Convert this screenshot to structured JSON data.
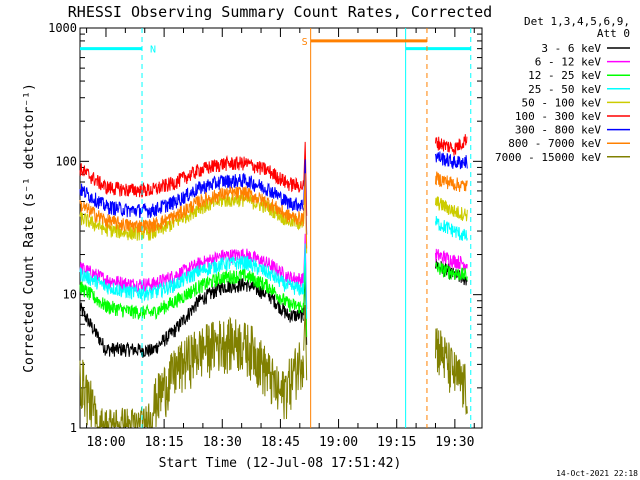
{
  "chart_data": {
    "type": "line",
    "title": "RHESSI Observing Summary Count Rates, Corrected",
    "xlabel": "Start Time (12-Jul-08 17:51:42)",
    "ylabel": "Corrected Count Rate (s⁻¹ detector⁻¹)",
    "ylog": true,
    "ylim": [
      1,
      1000
    ],
    "xlim_minutes": [
      -6.7,
      97.0
    ],
    "x_ticks": [
      {
        "label": "18:00",
        "t": 0
      },
      {
        "label": "18:15",
        "t": 15
      },
      {
        "label": "18:30",
        "t": 30
      },
      {
        "label": "18:45",
        "t": 45
      },
      {
        "label": "19:00",
        "t": 60
      },
      {
        "label": "19:15",
        "t": 75
      },
      {
        "label": "19:30",
        "t": 90
      }
    ],
    "y_ticks": [
      {
        "label": "1",
        "v": 1
      },
      {
        "label": "10",
        "v": 10
      },
      {
        "label": "100",
        "v": 100
      },
      {
        "label": "1000",
        "v": 1000
      }
    ],
    "legend_header": [
      "Det 1,3,4,5,6,9,",
      "Att 0"
    ],
    "legend_position": "right",
    "series": [
      {
        "name": "3 - 6 keV",
        "color": "#000000",
        "points": [
          [
            -6.7,
            8.0
          ],
          [
            0,
            3.9
          ],
          [
            6,
            3.9
          ],
          [
            12,
            3.8
          ],
          [
            18,
            5.5
          ],
          [
            24,
            9.0
          ],
          [
            30,
            11.5
          ],
          [
            36,
            12.0
          ],
          [
            42,
            10.0
          ],
          [
            47,
            7.0
          ],
          [
            51.0,
            7.0
          ]
        ],
        "after": [
          [
            85.0,
            17.0
          ],
          [
            90.0,
            14.0
          ],
          [
            93.2,
            13.0
          ]
        ]
      },
      {
        "name": "6 - 12 keV",
        "color": "#ff00ff",
        "points": [
          [
            -6.7,
            16.0
          ],
          [
            0,
            13.0
          ],
          [
            6,
            12.0
          ],
          [
            12,
            12.0
          ],
          [
            18,
            14.0
          ],
          [
            24,
            17.0
          ],
          [
            30,
            19.5
          ],
          [
            36,
            20.0
          ],
          [
            42,
            17.0
          ],
          [
            47,
            13.5
          ],
          [
            51.0,
            13.0
          ]
        ],
        "after": [
          [
            85.0,
            20.0
          ],
          [
            90.0,
            18.0
          ],
          [
            93.2,
            17.0
          ]
        ]
      },
      {
        "name": "12 - 25 keV",
        "color": "#00ff00",
        "points": [
          [
            -6.7,
            11.5
          ],
          [
            0,
            8.2
          ],
          [
            6,
            7.5
          ],
          [
            12,
            7.3
          ],
          [
            18,
            9.0
          ],
          [
            24,
            11.5
          ],
          [
            30,
            13.5
          ],
          [
            36,
            14.0
          ],
          [
            42,
            11.5
          ],
          [
            47,
            8.5
          ],
          [
            51.0,
            8.0
          ]
        ],
        "after": [
          [
            85.0,
            16.0
          ],
          [
            90.0,
            14.5
          ],
          [
            93.2,
            14.0
          ]
        ]
      },
      {
        "name": "25 - 50 keV",
        "color": "#00ffff",
        "points": [
          [
            -6.7,
            14.5
          ],
          [
            0,
            11.5
          ],
          [
            6,
            10.5
          ],
          [
            12,
            10.3
          ],
          [
            18,
            12.0
          ],
          [
            24,
            15.0
          ],
          [
            30,
            17.0
          ],
          [
            36,
            17.5
          ],
          [
            42,
            14.5
          ],
          [
            47,
            11.5
          ],
          [
            51.0,
            11.0
          ]
        ],
        "after": [
          [
            85.0,
            35.0
          ],
          [
            90.0,
            30.0
          ],
          [
            93.2,
            27.0
          ]
        ]
      },
      {
        "name": "50 - 100 keV",
        "color": "#cccc00",
        "points": [
          [
            -6.7,
            38.0
          ],
          [
            0,
            31.0
          ],
          [
            6,
            29.0
          ],
          [
            12,
            29.0
          ],
          [
            18,
            35.0
          ],
          [
            24,
            45.0
          ],
          [
            30,
            51.0
          ],
          [
            36,
            52.0
          ],
          [
            42,
            45.0
          ],
          [
            47,
            36.0
          ],
          [
            51.0,
            34.0
          ]
        ],
        "after": [
          [
            85.0,
            50.0
          ],
          [
            90.0,
            42.0
          ],
          [
            93.2,
            40.0
          ]
        ]
      },
      {
        "name": "100 - 300 keV",
        "color": "#ff0000",
        "points": [
          [
            -6.7,
            88.0
          ],
          [
            0,
            64.0
          ],
          [
            6,
            61.0
          ],
          [
            12,
            61.0
          ],
          [
            18,
            70.0
          ],
          [
            24,
            86.0
          ],
          [
            30,
            96.0
          ],
          [
            36,
            97.0
          ],
          [
            42,
            85.0
          ],
          [
            47,
            68.0
          ],
          [
            51.0,
            65.0
          ]
        ],
        "after": [
          [
            85.0,
            140.0
          ],
          [
            90.0,
            125.0
          ],
          [
            93.2,
            150.0
          ]
        ]
      },
      {
        "name": "300 - 800 keV",
        "color": "#0000ff",
        "points": [
          [
            -6.7,
            62.0
          ],
          [
            0,
            46.0
          ],
          [
            6,
            43.0
          ],
          [
            12,
            43.0
          ],
          [
            18,
            50.0
          ],
          [
            24,
            63.0
          ],
          [
            30,
            71.0
          ],
          [
            36,
            72.0
          ],
          [
            42,
            62.0
          ],
          [
            47,
            49.0
          ],
          [
            51.0,
            47.0
          ]
        ],
        "after": [
          [
            85.0,
            110.0
          ],
          [
            90.0,
            98.0
          ],
          [
            93.2,
            100.0
          ]
        ]
      },
      {
        "name": "800 - 7000 keV",
        "color": "#ff8000",
        "points": [
          [
            -6.7,
            47.0
          ],
          [
            0,
            36.0
          ],
          [
            6,
            33.0
          ],
          [
            12,
            33.0
          ],
          [
            18,
            39.0
          ],
          [
            24,
            50.0
          ],
          [
            30,
            57.0
          ],
          [
            36,
            58.0
          ],
          [
            42,
            49.0
          ],
          [
            47,
            39.0
          ],
          [
            51.0,
            37.0
          ]
        ],
        "after": [
          [
            85.0,
            75.0
          ],
          [
            90.0,
            68.0
          ],
          [
            93.2,
            65.0
          ]
        ]
      },
      {
        "name": "7000 - 15000 keV",
        "color": "#808000",
        "points": [
          [
            -6.7,
            2.6
          ],
          [
            -4,
            1.6
          ],
          [
            -2,
            1.0
          ],
          [
            10,
            1.0
          ],
          [
            13,
            1.7
          ],
          [
            18,
            2.8
          ],
          [
            22,
            3.6
          ],
          [
            26,
            4.2
          ],
          [
            30,
            4.6
          ],
          [
            34,
            4.6
          ],
          [
            38,
            4.0
          ],
          [
            42,
            2.6
          ],
          [
            45,
            1.8
          ],
          [
            47,
            2.2
          ],
          [
            51.0,
            3.8
          ]
        ],
        "after": [
          [
            85.0,
            4.6
          ],
          [
            88.0,
            3.2
          ],
          [
            90.0,
            2.6
          ],
          [
            93.2,
            2.0
          ]
        ]
      }
    ],
    "spike_at": 51.0,
    "gap": [
      53.0,
      84.3
    ],
    "annotations": {
      "night_label": "N",
      "night_flag_y": 700,
      "saa_label": "S",
      "saa_flag_y": 800,
      "night_intervals": [
        [
          -6.7,
          9.3
        ],
        [
          77.3,
          94.1
        ]
      ],
      "saa_intervals": [
        [
          52.8,
          82.8
        ]
      ]
    },
    "footer_date": "14-Oct-2021 22:18"
  }
}
